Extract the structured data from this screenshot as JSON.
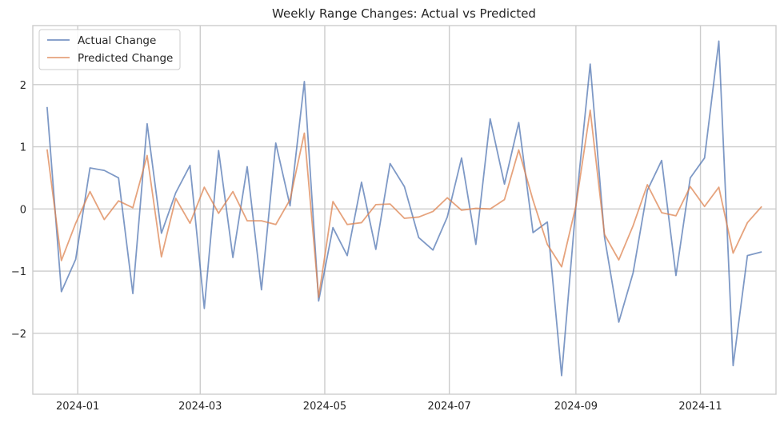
{
  "chart_data": {
    "type": "line",
    "title": "Weekly Range Changes: Actual vs Predicted",
    "xlabel": "",
    "ylabel": "",
    "xlim": [
      "2023-12-10",
      "2024-12-08"
    ],
    "ylim": [
      -2.98,
      2.95
    ],
    "x_ticks": [
      "2024-01-01",
      "2024-03-01",
      "2024-05-01",
      "2024-07-01",
      "2024-09-01",
      "2024-11-01"
    ],
    "x_tick_labels": [
      "2024-01",
      "2024-03",
      "2024-05",
      "2024-07",
      "2024-09",
      "2024-11"
    ],
    "y_ticks": [
      -2,
      -1,
      0,
      1,
      2
    ],
    "y_tick_labels": [
      "−2",
      "−1",
      "0",
      "1",
      "2"
    ],
    "grid": true,
    "legend": "top-left",
    "x": [
      "2023-12-17",
      "2023-12-24",
      "2023-12-31",
      "2024-01-07",
      "2024-01-14",
      "2024-01-21",
      "2024-01-28",
      "2024-02-04",
      "2024-02-11",
      "2024-02-18",
      "2024-02-25",
      "2024-03-03",
      "2024-03-10",
      "2024-03-17",
      "2024-03-24",
      "2024-03-31",
      "2024-04-07",
      "2024-04-14",
      "2024-04-21",
      "2024-04-28",
      "2024-05-05",
      "2024-05-12",
      "2024-05-19",
      "2024-05-26",
      "2024-06-02",
      "2024-06-09",
      "2024-06-16",
      "2024-06-23",
      "2024-06-30",
      "2024-07-07",
      "2024-07-14",
      "2024-07-21",
      "2024-07-28",
      "2024-08-04",
      "2024-08-11",
      "2024-08-18",
      "2024-08-25",
      "2024-09-01",
      "2024-09-08",
      "2024-09-15",
      "2024-09-22",
      "2024-09-29",
      "2024-10-06",
      "2024-10-13",
      "2024-10-20",
      "2024-10-27",
      "2024-11-03",
      "2024-11-10",
      "2024-11-17",
      "2024-11-24",
      "2024-12-01"
    ],
    "series": [
      {
        "name": "Actual Change",
        "color": "#4c72b0",
        "values": [
          1.64,
          -1.33,
          -0.81,
          0.66,
          0.62,
          0.5,
          -1.36,
          1.37,
          -0.39,
          0.26,
          0.7,
          -1.6,
          0.94,
          -0.78,
          0.68,
          -1.3,
          1.06,
          0.05,
          2.05,
          -1.48,
          -0.3,
          -0.75,
          0.43,
          -0.65,
          0.73,
          0.36,
          -0.46,
          -0.66,
          -0.13,
          0.82,
          -0.57,
          1.45,
          0.4,
          1.39,
          -0.38,
          -0.21,
          -2.68,
          0.05,
          2.33,
          -0.45,
          -1.82,
          -1.03,
          0.3,
          0.78,
          -1.07,
          0.5,
          0.82,
          2.7,
          -2.52,
          -0.75,
          -0.69
        ]
      },
      {
        "name": "Predicted Change",
        "color": "#dd8452",
        "values": [
          0.96,
          -0.83,
          -0.23,
          0.28,
          -0.17,
          0.13,
          0.02,
          0.86,
          -0.77,
          0.17,
          -0.23,
          0.35,
          -0.07,
          0.28,
          -0.19,
          -0.19,
          -0.25,
          0.15,
          1.22,
          -1.42,
          0.12,
          -0.25,
          -0.22,
          0.07,
          0.08,
          -0.15,
          -0.13,
          -0.04,
          0.18,
          -0.02,
          0.01,
          0.0,
          0.15,
          0.95,
          0.14,
          -0.57,
          -0.93,
          0.05,
          1.59,
          -0.41,
          -0.82,
          -0.27,
          0.39,
          -0.06,
          -0.11,
          0.36,
          0.04,
          0.35,
          -0.71,
          -0.22,
          0.04
        ]
      }
    ]
  }
}
